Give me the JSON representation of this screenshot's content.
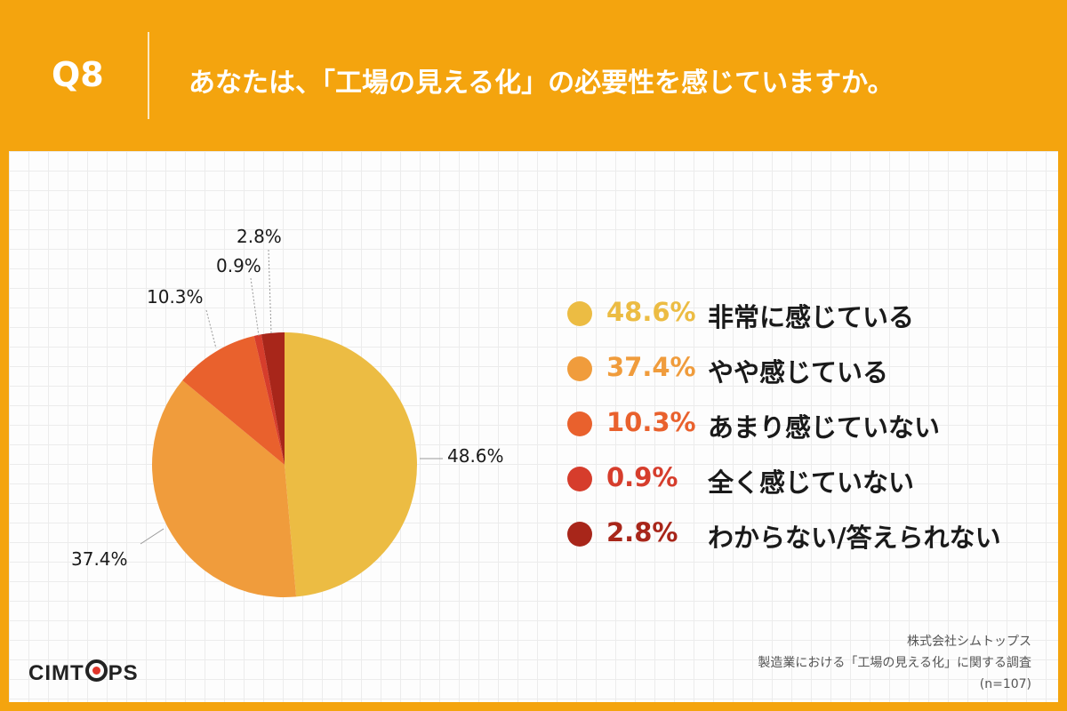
{
  "header": {
    "question_number": "Q8",
    "question": "あなたは、「工場の見える化」の必要性を感じていますか。"
  },
  "chart_data": {
    "type": "pie",
    "start_angle": "12 o'clock",
    "direction": "clockwise",
    "slices": [
      {
        "label": "非常に感じている",
        "value": 48.6,
        "value_label": "48.6%",
        "color": "#ecbc43"
      },
      {
        "label": "やや感じている",
        "value": 37.4,
        "value_label": "37.4%",
        "color": "#f09c3c"
      },
      {
        "label": "あまり感じていない",
        "value": 10.3,
        "value_label": "10.3%",
        "color": "#e9612d"
      },
      {
        "label": "全く感じていない",
        "value": 0.9,
        "value_label": "0.9%",
        "color": "#d63d2c"
      },
      {
        "label": "わからない/答えられない",
        "value": 2.8,
        "value_label": "2.8%",
        "color": "#a8261a"
      }
    ],
    "legend_position": "right"
  },
  "brand": {
    "logo_left": "CIMT",
    "logo_right": "PS"
  },
  "footer": {
    "company": "株式会社シムトップス",
    "survey": "製造業における「工場の見える化」に関する調査",
    "sample": "(n=107)"
  }
}
